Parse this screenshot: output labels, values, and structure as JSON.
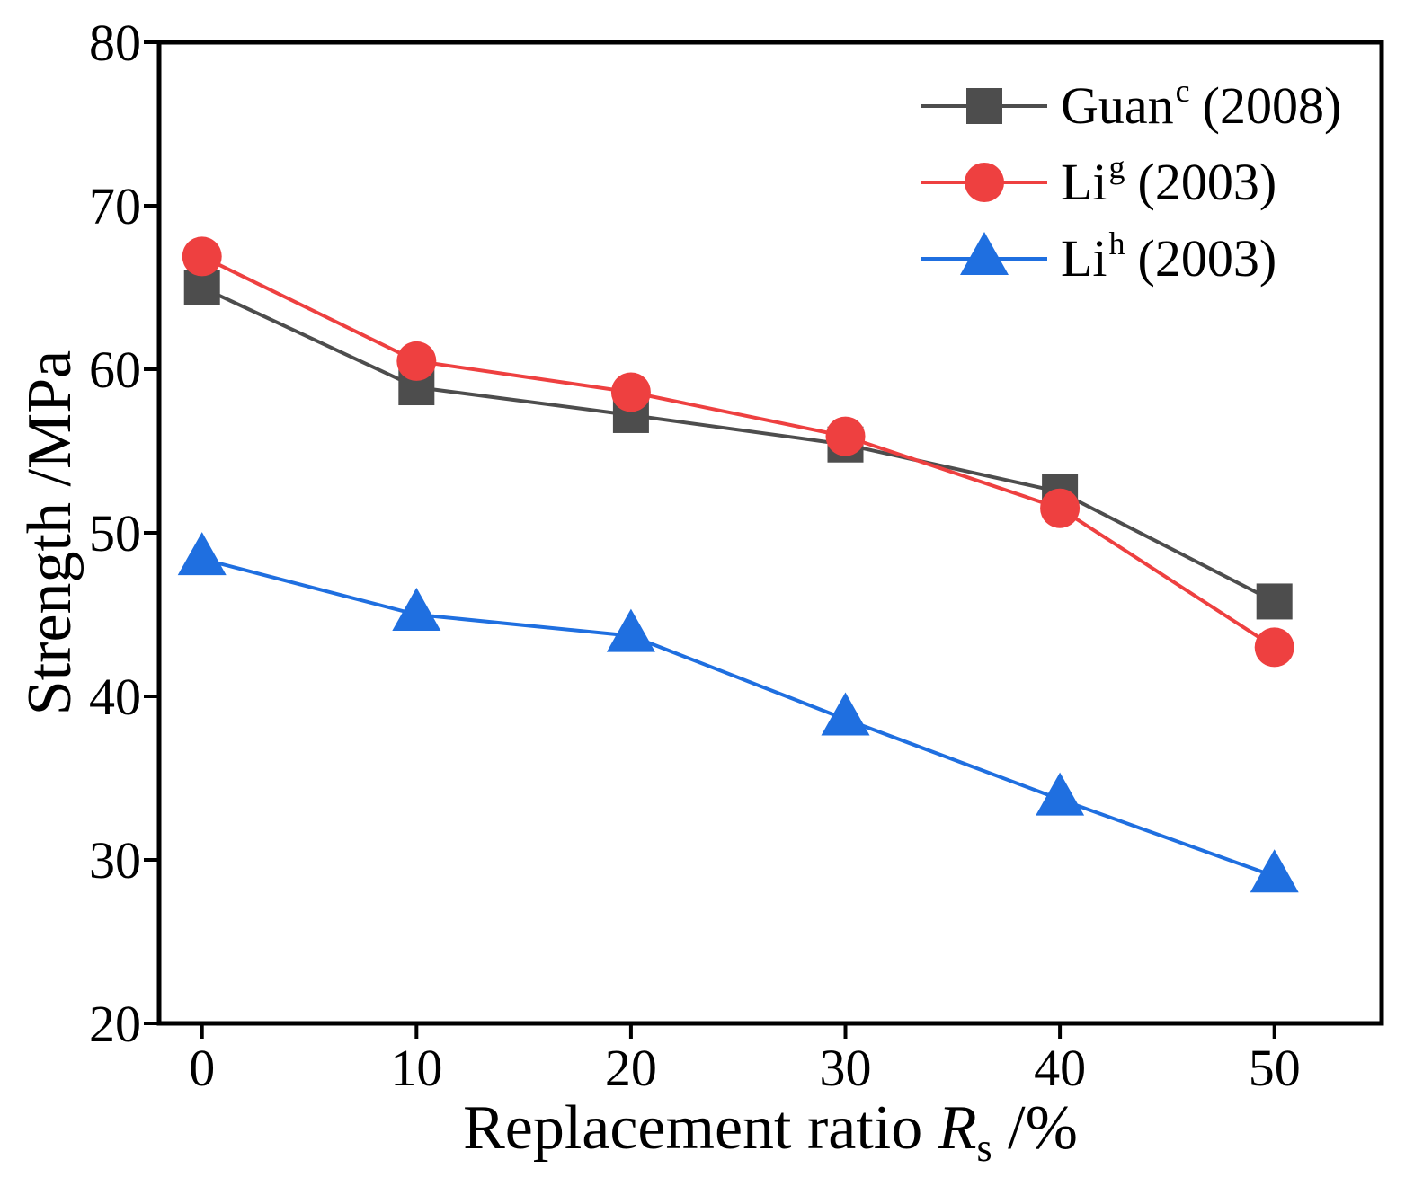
{
  "chart_data": {
    "type": "line",
    "title": "",
    "xlabel_prefix": "Replacement ratio ",
    "xlabel_var": "R",
    "xlabel_sub": "s",
    "xlabel_suffix": " /%",
    "ylabel": "Strength /MPa",
    "xlim": [
      -2,
      55
    ],
    "ylim": [
      20,
      80
    ],
    "xticks": [
      0,
      10,
      20,
      30,
      40,
      50
    ],
    "yticks": [
      20,
      30,
      40,
      50,
      60,
      70,
      80
    ],
    "grid": false,
    "legend": "top-right",
    "x": [
      0,
      10,
      20,
      30,
      40,
      50
    ],
    "series": [
      {
        "name": "Guan",
        "sup": "c",
        "year": "(2008)",
        "color": "#4d4d4d",
        "marker": "square",
        "values": [
          65.0,
          58.9,
          57.2,
          55.4,
          52.5,
          45.8
        ]
      },
      {
        "name": "Li",
        "sup": "g",
        "year": "(2003)",
        "color": "#ee4040",
        "marker": "circle",
        "values": [
          66.9,
          60.5,
          58.6,
          55.9,
          51.5,
          43.0
        ]
      },
      {
        "name": "Li",
        "sup": "h",
        "year": "(2003)",
        "color": "#1f6fe0",
        "marker": "triangle",
        "values": [
          48.4,
          45.0,
          43.7,
          38.6,
          33.7,
          29.0
        ]
      }
    ]
  }
}
